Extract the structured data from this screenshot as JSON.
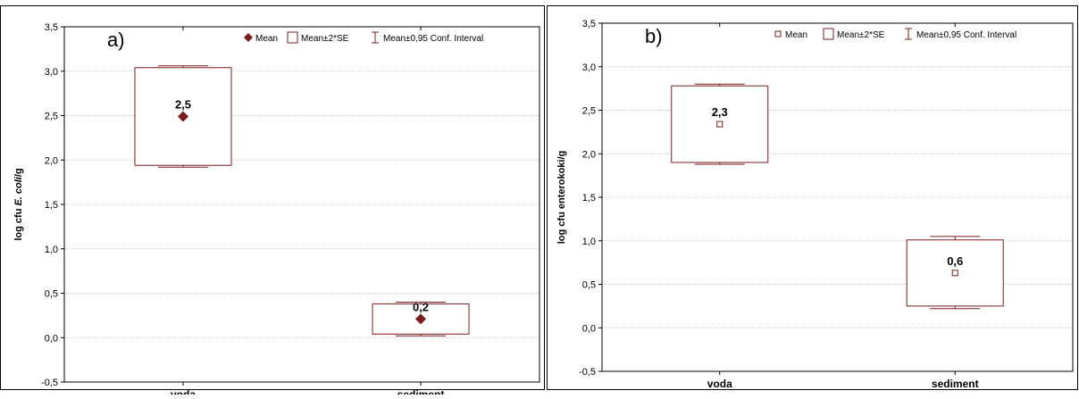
{
  "chart_data": [
    {
      "panel_label": "a)",
      "type": "box",
      "ylabel_prefix": "log cfu ",
      "ylabel_italic": "E. coli",
      "ylabel_suffix": "/g",
      "xlabel": "",
      "ylim": [
        -0.5,
        3.5
      ],
      "yticks": [
        "-0,5",
        "0,0",
        "0,5",
        "1,0",
        "1,5",
        "2,0",
        "2,5",
        "3,0",
        "3,5"
      ],
      "ytick_values": [
        -0.5,
        0,
        0.5,
        1,
        1.5,
        2,
        2.5,
        3,
        3.5
      ],
      "grid": true,
      "legend_position": "top-right",
      "legend": {
        "mean": "Mean",
        "se": "Mean±2*SE",
        "ci": "Mean±0,95 Conf. Interval"
      },
      "mean_marker": "filled-diamond",
      "categories": [
        "voda",
        "sediment"
      ],
      "series": [
        {
          "category": "voda",
          "mean": 2.49,
          "se_low": 1.94,
          "se_high": 3.04,
          "ci_low": 1.92,
          "ci_high": 3.06,
          "label": "2,5"
        },
        {
          "category": "sediment",
          "mean": 0.21,
          "se_low": 0.04,
          "se_high": 0.38,
          "ci_low": 0.02,
          "ci_high": 0.4,
          "label": "0,2"
        }
      ],
      "colors": {
        "series": "#7b1c1c",
        "grid": "#c8c8c8",
        "axis": "#000000"
      }
    },
    {
      "panel_label": "b)",
      "type": "box",
      "ylabel_prefix": "log cfu enterokoki/g",
      "ylabel_italic": "",
      "ylabel_suffix": "",
      "xlabel": "",
      "ylim": [
        -0.5,
        3.5
      ],
      "yticks": [
        "-0,5",
        "0,0",
        "0,5",
        "1,0",
        "1,5",
        "2,0",
        "2,5",
        "3,0",
        "3,5"
      ],
      "ytick_values": [
        -0.5,
        0,
        0.5,
        1,
        1.5,
        2,
        2.5,
        3,
        3.5
      ],
      "grid": true,
      "legend_position": "top-right",
      "legend": {
        "mean": "Mean",
        "se": "Mean±2*SE",
        "ci": "Mean±0,95 Conf. Interval"
      },
      "mean_marker": "open-square",
      "categories": [
        "voda",
        "sediment"
      ],
      "series": [
        {
          "category": "voda",
          "mean": 2.34,
          "se_low": 1.9,
          "se_high": 2.78,
          "ci_low": 1.88,
          "ci_high": 2.8,
          "label": "2,3"
        },
        {
          "category": "sediment",
          "mean": 0.63,
          "se_low": 0.25,
          "se_high": 1.01,
          "ci_low": 0.22,
          "ci_high": 1.05,
          "label": "0,6"
        }
      ],
      "colors": {
        "series": "#7b1c1c",
        "grid": "#c8c8c8",
        "axis": "#000000"
      }
    }
  ]
}
